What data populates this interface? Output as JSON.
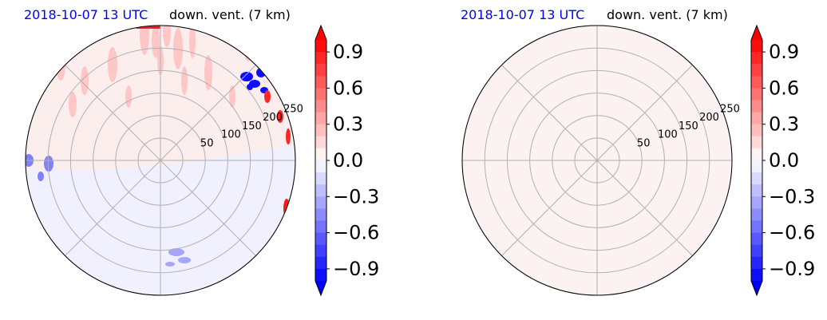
{
  "chart_data": [
    {
      "type": "heatmap",
      "projection": "polar",
      "title_left": "2018-10-07 13 UTC",
      "title_right": "down. vent. (7 km)",
      "radial_ticks": [
        50,
        100,
        150,
        200,
        250
      ],
      "rlim": [
        0,
        250
      ],
      "grid": true,
      "field": "disturbed",
      "colorbar": {
        "ticks": [
          0.9,
          0.6,
          0.3,
          0.0,
          -0.3,
          -0.6,
          -0.9
        ],
        "tick_labels": [
          "0.9",
          "0.6",
          "0.3",
          "0.0",
          "−0.3",
          "−0.6",
          "−0.9"
        ],
        "vmin": -1.0,
        "vmax": 1.0,
        "cmap": "bwr",
        "extend": "both"
      }
    },
    {
      "type": "heatmap",
      "projection": "polar",
      "title_left": "2018-10-07 13 UTC",
      "title_right": "down. vent. (7 km)",
      "radial_ticks": [
        50,
        100,
        150,
        200,
        250
      ],
      "rlim": [
        0,
        250
      ],
      "grid": true,
      "field": "uniform",
      "colorbar": {
        "ticks": [
          0.9,
          0.6,
          0.3,
          0.0,
          -0.3,
          -0.6,
          -0.9
        ],
        "tick_labels": [
          "0.9",
          "0.6",
          "0.3",
          "0.0",
          "−0.3",
          "−0.6",
          "−0.9"
        ],
        "vmin": -1.0,
        "vmax": 1.0,
        "cmap": "bwr",
        "extend": "both"
      }
    }
  ],
  "colors": {
    "title_date": "#0000ff",
    "grid": "#b0b0b0",
    "positive": "#ff0000",
    "negative": "#0000ff",
    "neutral_bg": "#fdf2f2"
  }
}
